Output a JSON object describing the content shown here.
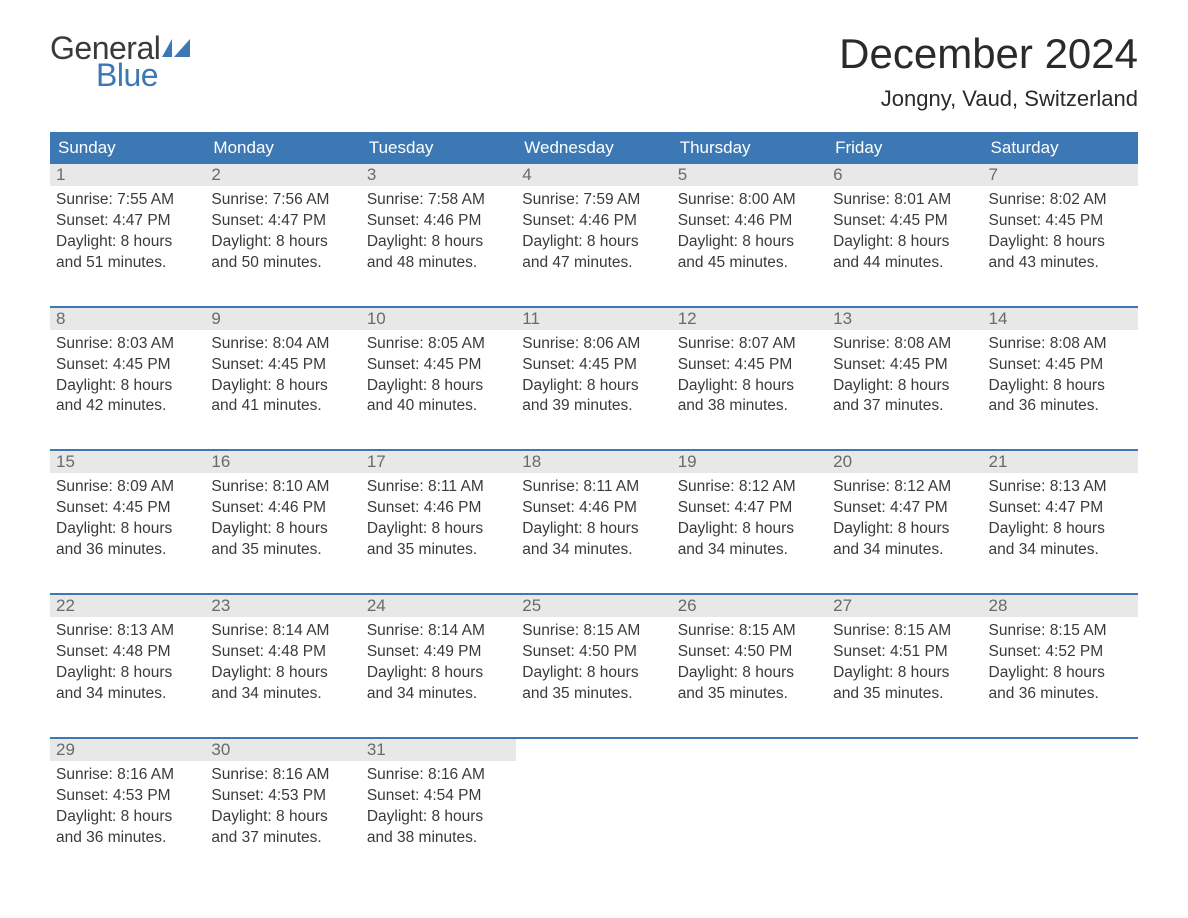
{
  "logo": {
    "text_general": "General",
    "text_blue": "Blue",
    "icon_color": "#3c78b4"
  },
  "title": "December 2024",
  "location": "Jongny, Vaud, Switzerland",
  "colors": {
    "header_bg": "#3c78b4",
    "header_text": "#ffffff",
    "daynum_bg": "#e8e8e8",
    "daynum_text": "#6a6a6a",
    "body_text": "#3a3a3a",
    "week_border": "#3c78b4",
    "page_bg": "#ffffff"
  },
  "weekdays": [
    "Sunday",
    "Monday",
    "Tuesday",
    "Wednesday",
    "Thursday",
    "Friday",
    "Saturday"
  ],
  "weeks": [
    [
      {
        "num": "1",
        "sunrise": "Sunrise: 7:55 AM",
        "sunset": "Sunset: 4:47 PM",
        "daylight1": "Daylight: 8 hours",
        "daylight2": "and 51 minutes."
      },
      {
        "num": "2",
        "sunrise": "Sunrise: 7:56 AM",
        "sunset": "Sunset: 4:47 PM",
        "daylight1": "Daylight: 8 hours",
        "daylight2": "and 50 minutes."
      },
      {
        "num": "3",
        "sunrise": "Sunrise: 7:58 AM",
        "sunset": "Sunset: 4:46 PM",
        "daylight1": "Daylight: 8 hours",
        "daylight2": "and 48 minutes."
      },
      {
        "num": "4",
        "sunrise": "Sunrise: 7:59 AM",
        "sunset": "Sunset: 4:46 PM",
        "daylight1": "Daylight: 8 hours",
        "daylight2": "and 47 minutes."
      },
      {
        "num": "5",
        "sunrise": "Sunrise: 8:00 AM",
        "sunset": "Sunset: 4:46 PM",
        "daylight1": "Daylight: 8 hours",
        "daylight2": "and 45 minutes."
      },
      {
        "num": "6",
        "sunrise": "Sunrise: 8:01 AM",
        "sunset": "Sunset: 4:45 PM",
        "daylight1": "Daylight: 8 hours",
        "daylight2": "and 44 minutes."
      },
      {
        "num": "7",
        "sunrise": "Sunrise: 8:02 AM",
        "sunset": "Sunset: 4:45 PM",
        "daylight1": "Daylight: 8 hours",
        "daylight2": "and 43 minutes."
      }
    ],
    [
      {
        "num": "8",
        "sunrise": "Sunrise: 8:03 AM",
        "sunset": "Sunset: 4:45 PM",
        "daylight1": "Daylight: 8 hours",
        "daylight2": "and 42 minutes."
      },
      {
        "num": "9",
        "sunrise": "Sunrise: 8:04 AM",
        "sunset": "Sunset: 4:45 PM",
        "daylight1": "Daylight: 8 hours",
        "daylight2": "and 41 minutes."
      },
      {
        "num": "10",
        "sunrise": "Sunrise: 8:05 AM",
        "sunset": "Sunset: 4:45 PM",
        "daylight1": "Daylight: 8 hours",
        "daylight2": "and 40 minutes."
      },
      {
        "num": "11",
        "sunrise": "Sunrise: 8:06 AM",
        "sunset": "Sunset: 4:45 PM",
        "daylight1": "Daylight: 8 hours",
        "daylight2": "and 39 minutes."
      },
      {
        "num": "12",
        "sunrise": "Sunrise: 8:07 AM",
        "sunset": "Sunset: 4:45 PM",
        "daylight1": "Daylight: 8 hours",
        "daylight2": "and 38 minutes."
      },
      {
        "num": "13",
        "sunrise": "Sunrise: 8:08 AM",
        "sunset": "Sunset: 4:45 PM",
        "daylight1": "Daylight: 8 hours",
        "daylight2": "and 37 minutes."
      },
      {
        "num": "14",
        "sunrise": "Sunrise: 8:08 AM",
        "sunset": "Sunset: 4:45 PM",
        "daylight1": "Daylight: 8 hours",
        "daylight2": "and 36 minutes."
      }
    ],
    [
      {
        "num": "15",
        "sunrise": "Sunrise: 8:09 AM",
        "sunset": "Sunset: 4:45 PM",
        "daylight1": "Daylight: 8 hours",
        "daylight2": "and 36 minutes."
      },
      {
        "num": "16",
        "sunrise": "Sunrise: 8:10 AM",
        "sunset": "Sunset: 4:46 PM",
        "daylight1": "Daylight: 8 hours",
        "daylight2": "and 35 minutes."
      },
      {
        "num": "17",
        "sunrise": "Sunrise: 8:11 AM",
        "sunset": "Sunset: 4:46 PM",
        "daylight1": "Daylight: 8 hours",
        "daylight2": "and 35 minutes."
      },
      {
        "num": "18",
        "sunrise": "Sunrise: 8:11 AM",
        "sunset": "Sunset: 4:46 PM",
        "daylight1": "Daylight: 8 hours",
        "daylight2": "and 34 minutes."
      },
      {
        "num": "19",
        "sunrise": "Sunrise: 8:12 AM",
        "sunset": "Sunset: 4:47 PM",
        "daylight1": "Daylight: 8 hours",
        "daylight2": "and 34 minutes."
      },
      {
        "num": "20",
        "sunrise": "Sunrise: 8:12 AM",
        "sunset": "Sunset: 4:47 PM",
        "daylight1": "Daylight: 8 hours",
        "daylight2": "and 34 minutes."
      },
      {
        "num": "21",
        "sunrise": "Sunrise: 8:13 AM",
        "sunset": "Sunset: 4:47 PM",
        "daylight1": "Daylight: 8 hours",
        "daylight2": "and 34 minutes."
      }
    ],
    [
      {
        "num": "22",
        "sunrise": "Sunrise: 8:13 AM",
        "sunset": "Sunset: 4:48 PM",
        "daylight1": "Daylight: 8 hours",
        "daylight2": "and 34 minutes."
      },
      {
        "num": "23",
        "sunrise": "Sunrise: 8:14 AM",
        "sunset": "Sunset: 4:48 PM",
        "daylight1": "Daylight: 8 hours",
        "daylight2": "and 34 minutes."
      },
      {
        "num": "24",
        "sunrise": "Sunrise: 8:14 AM",
        "sunset": "Sunset: 4:49 PM",
        "daylight1": "Daylight: 8 hours",
        "daylight2": "and 34 minutes."
      },
      {
        "num": "25",
        "sunrise": "Sunrise: 8:15 AM",
        "sunset": "Sunset: 4:50 PM",
        "daylight1": "Daylight: 8 hours",
        "daylight2": "and 35 minutes."
      },
      {
        "num": "26",
        "sunrise": "Sunrise: 8:15 AM",
        "sunset": "Sunset: 4:50 PM",
        "daylight1": "Daylight: 8 hours",
        "daylight2": "and 35 minutes."
      },
      {
        "num": "27",
        "sunrise": "Sunrise: 8:15 AM",
        "sunset": "Sunset: 4:51 PM",
        "daylight1": "Daylight: 8 hours",
        "daylight2": "and 35 minutes."
      },
      {
        "num": "28",
        "sunrise": "Sunrise: 8:15 AM",
        "sunset": "Sunset: 4:52 PM",
        "daylight1": "Daylight: 8 hours",
        "daylight2": "and 36 minutes."
      }
    ],
    [
      {
        "num": "29",
        "sunrise": "Sunrise: 8:16 AM",
        "sunset": "Sunset: 4:53 PM",
        "daylight1": "Daylight: 8 hours",
        "daylight2": "and 36 minutes."
      },
      {
        "num": "30",
        "sunrise": "Sunrise: 8:16 AM",
        "sunset": "Sunset: 4:53 PM",
        "daylight1": "Daylight: 8 hours",
        "daylight2": "and 37 minutes."
      },
      {
        "num": "31",
        "sunrise": "Sunrise: 8:16 AM",
        "sunset": "Sunset: 4:54 PM",
        "daylight1": "Daylight: 8 hours",
        "daylight2": "and 38 minutes."
      },
      null,
      null,
      null,
      null
    ]
  ]
}
